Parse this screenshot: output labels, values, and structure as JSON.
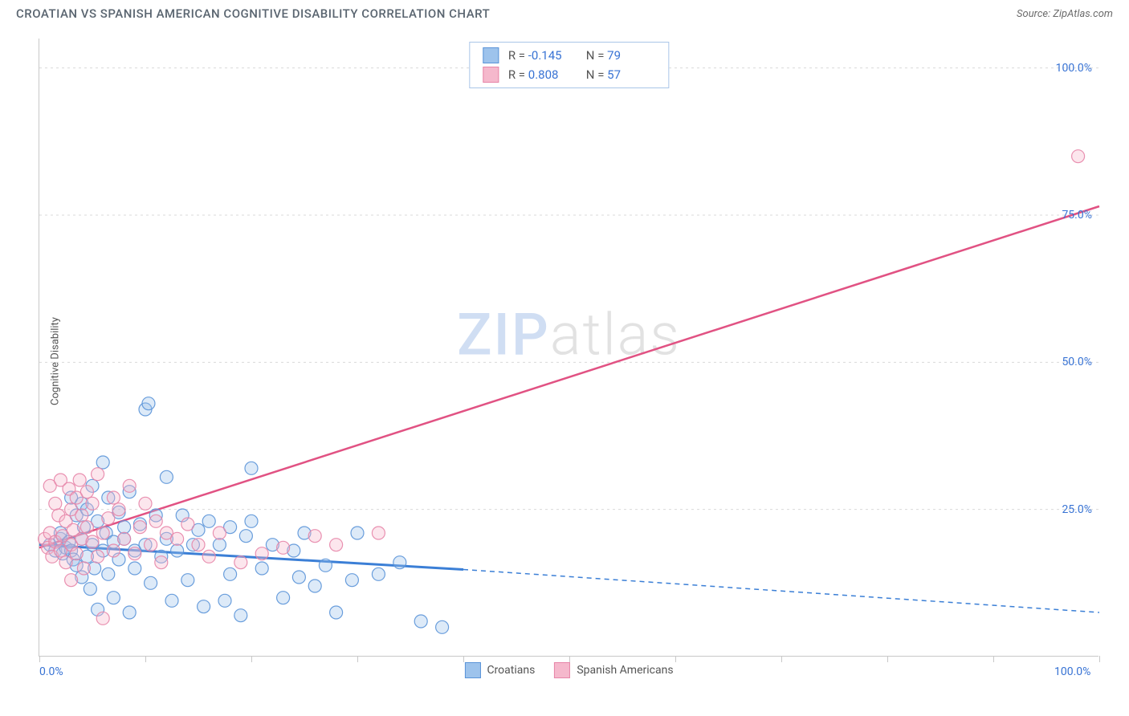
{
  "header": {
    "title": "CROATIAN VS SPANISH AMERICAN COGNITIVE DISABILITY CORRELATION CHART",
    "source": "Source: ZipAtlas.com"
  },
  "chart": {
    "type": "scatter",
    "y_axis_label": "Cognitive Disability",
    "background_color": "#ffffff",
    "grid_color": "#dadada",
    "axis_color": "#c8c8c8",
    "tick_label_color": "#3873d4",
    "xlim": [
      0,
      100
    ],
    "ylim": [
      0,
      105
    ],
    "y_ticks": [
      {
        "value": 25,
        "label": "25.0%"
      },
      {
        "value": 50,
        "label": "50.0%"
      },
      {
        "value": 75,
        "label": "75.0%"
      },
      {
        "value": 100,
        "label": "100.0%"
      }
    ],
    "x_ticks_minor": [
      0,
      10,
      20,
      30,
      40,
      50,
      60,
      70,
      80,
      90,
      100
    ],
    "x_ticks_labeled": [
      {
        "value": 0,
        "label": "0.0%"
      },
      {
        "value": 100,
        "label": "100.0%"
      }
    ],
    "watermark": {
      "part1": "ZIP",
      "part2": "atlas"
    },
    "marker_radius": 8,
    "marker_fill_opacity": 0.35,
    "marker_stroke_opacity": 0.9,
    "series": [
      {
        "name": "Croatians",
        "color_fill": "#9dc3ec",
        "color_stroke": "#5a94d8",
        "line_color": "#3b7fd6",
        "line_width": 3,
        "r_value": "-0.145",
        "n_value": "79",
        "trend": {
          "x1": 0,
          "y1": 19.0,
          "x2": 40,
          "y2": 14.8,
          "dashed_to_x": 100,
          "dashed_to_y": 7.5
        },
        "points": [
          [
            1,
            19
          ],
          [
            1.5,
            18
          ],
          [
            2,
            20
          ],
          [
            2,
            21
          ],
          [
            2.2,
            17.5
          ],
          [
            2.5,
            18.5
          ],
          [
            2.8,
            19.5
          ],
          [
            3,
            18
          ],
          [
            3,
            27
          ],
          [
            3.2,
            16.5
          ],
          [
            3.5,
            24
          ],
          [
            3.5,
            15.5
          ],
          [
            4,
            20
          ],
          [
            4,
            26
          ],
          [
            4,
            13.5
          ],
          [
            4.2,
            22
          ],
          [
            4.5,
            17
          ],
          [
            4.5,
            25
          ],
          [
            4.8,
            11.5
          ],
          [
            5,
            19
          ],
          [
            5,
            29
          ],
          [
            5.2,
            15
          ],
          [
            5.5,
            23
          ],
          [
            5.5,
            8
          ],
          [
            6,
            18
          ],
          [
            6,
            33
          ],
          [
            6.3,
            21
          ],
          [
            6.5,
            14
          ],
          [
            6.5,
            27
          ],
          [
            7,
            19.5
          ],
          [
            7,
            10
          ],
          [
            7.5,
            24.5
          ],
          [
            7.5,
            16.5
          ],
          [
            8,
            20
          ],
          [
            8,
            22
          ],
          [
            8.5,
            7.5
          ],
          [
            8.5,
            28
          ],
          [
            9,
            18
          ],
          [
            9,
            15
          ],
          [
            9.5,
            22.5
          ],
          [
            10,
            19
          ],
          [
            10,
            42
          ],
          [
            10.3,
            43
          ],
          [
            10.5,
            12.5
          ],
          [
            11,
            24
          ],
          [
            11.5,
            17
          ],
          [
            12,
            30.5
          ],
          [
            12,
            20
          ],
          [
            12.5,
            9.5
          ],
          [
            13,
            18
          ],
          [
            13.5,
            24
          ],
          [
            14,
            13
          ],
          [
            14.5,
            19
          ],
          [
            15,
            21.5
          ],
          [
            15.5,
            8.5
          ],
          [
            16,
            23
          ],
          [
            17,
            19
          ],
          [
            17.5,
            9.5
          ],
          [
            18,
            22
          ],
          [
            18,
            14
          ],
          [
            19,
            7
          ],
          [
            19.5,
            20.5
          ],
          [
            20,
            32
          ],
          [
            20,
            23
          ],
          [
            21,
            15
          ],
          [
            22,
            19
          ],
          [
            23,
            10
          ],
          [
            24,
            18
          ],
          [
            24.5,
            13.5
          ],
          [
            25,
            21
          ],
          [
            26,
            12
          ],
          [
            27,
            15.5
          ],
          [
            28,
            7.5
          ],
          [
            29.5,
            13
          ],
          [
            30,
            21
          ],
          [
            32,
            14
          ],
          [
            34,
            16
          ],
          [
            36,
            6
          ],
          [
            38,
            5
          ]
        ]
      },
      {
        "name": "Spanish Americans",
        "color_fill": "#f5b8cc",
        "color_stroke": "#e785a8",
        "line_color": "#e15283",
        "line_width": 2.5,
        "r_value": "0.808",
        "n_value": "57",
        "trend": {
          "x1": 0,
          "y1": 18.5,
          "x2": 100,
          "y2": 76.5
        },
        "points": [
          [
            0.5,
            20
          ],
          [
            0.8,
            18.5
          ],
          [
            1,
            21
          ],
          [
            1,
            29
          ],
          [
            1.2,
            17
          ],
          [
            1.5,
            19.5
          ],
          [
            1.5,
            26
          ],
          [
            1.8,
            24
          ],
          [
            2,
            18
          ],
          [
            2,
            30
          ],
          [
            2.2,
            20.5
          ],
          [
            2.5,
            23
          ],
          [
            2.5,
            16
          ],
          [
            2.8,
            28.5
          ],
          [
            3,
            19
          ],
          [
            3,
            25
          ],
          [
            3,
            13
          ],
          [
            3.2,
            21.5
          ],
          [
            3.5,
            27
          ],
          [
            3.5,
            17.5
          ],
          [
            3.8,
            30
          ],
          [
            4,
            20
          ],
          [
            4,
            24
          ],
          [
            4.2,
            15
          ],
          [
            4.5,
            22
          ],
          [
            4.5,
            28
          ],
          [
            5,
            19.5
          ],
          [
            5,
            26
          ],
          [
            5.5,
            17
          ],
          [
            5.5,
            31
          ],
          [
            6,
            21
          ],
          [
            6,
            6.5
          ],
          [
            6.5,
            23.5
          ],
          [
            7,
            18
          ],
          [
            7,
            27
          ],
          [
            7.5,
            25
          ],
          [
            8,
            20
          ],
          [
            8.5,
            29
          ],
          [
            9,
            17.5
          ],
          [
            9.5,
            22
          ],
          [
            10,
            26
          ],
          [
            10.5,
            19
          ],
          [
            11,
            23
          ],
          [
            11.5,
            16
          ],
          [
            12,
            21
          ],
          [
            13,
            20
          ],
          [
            14,
            22.5
          ],
          [
            15,
            19
          ],
          [
            16,
            17
          ],
          [
            17,
            21
          ],
          [
            19,
            16
          ],
          [
            21,
            17.5
          ],
          [
            23,
            18.5
          ],
          [
            26,
            20.5
          ],
          [
            28,
            19
          ],
          [
            32,
            21
          ],
          [
            98,
            85
          ]
        ]
      }
    ],
    "stats_legend": {
      "r_label": "R =",
      "n_label": "N ="
    },
    "bottom_legend": {
      "items": [
        "Croatians",
        "Spanish Americans"
      ]
    }
  }
}
